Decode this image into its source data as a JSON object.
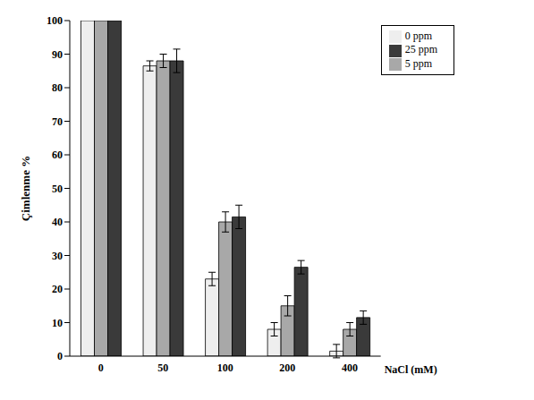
{
  "chart_data": {
    "type": "bar",
    "x_label": "NaCl (mM)",
    "y_label": "Çimlenme %",
    "categories": [
      "0",
      "50",
      "100",
      "200",
      "400"
    ],
    "series": [
      {
        "name": "0 ppm",
        "color": "#eeeeee",
        "values": [
          100,
          86.5,
          23,
          8,
          1.5
        ],
        "errors": [
          0,
          1.5,
          2,
          2,
          2
        ]
      },
      {
        "name": "5 ppm",
        "color": "#a8a8a8",
        "values": [
          100,
          88,
          40,
          15,
          8
        ],
        "errors": [
          0,
          2,
          3,
          3,
          2
        ]
      },
      {
        "name": "25 ppm",
        "color": "#3a3a3a",
        "values": [
          100,
          88,
          41.5,
          26.5,
          11.5
        ],
        "errors": [
          0,
          3.5,
          3.5,
          2,
          2
        ]
      }
    ],
    "ylim": [
      0,
      100
    ],
    "yticks": [
      0,
      10,
      20,
      30,
      40,
      50,
      60,
      70,
      80,
      90,
      100
    ],
    "grid": false,
    "legend": "top right"
  }
}
